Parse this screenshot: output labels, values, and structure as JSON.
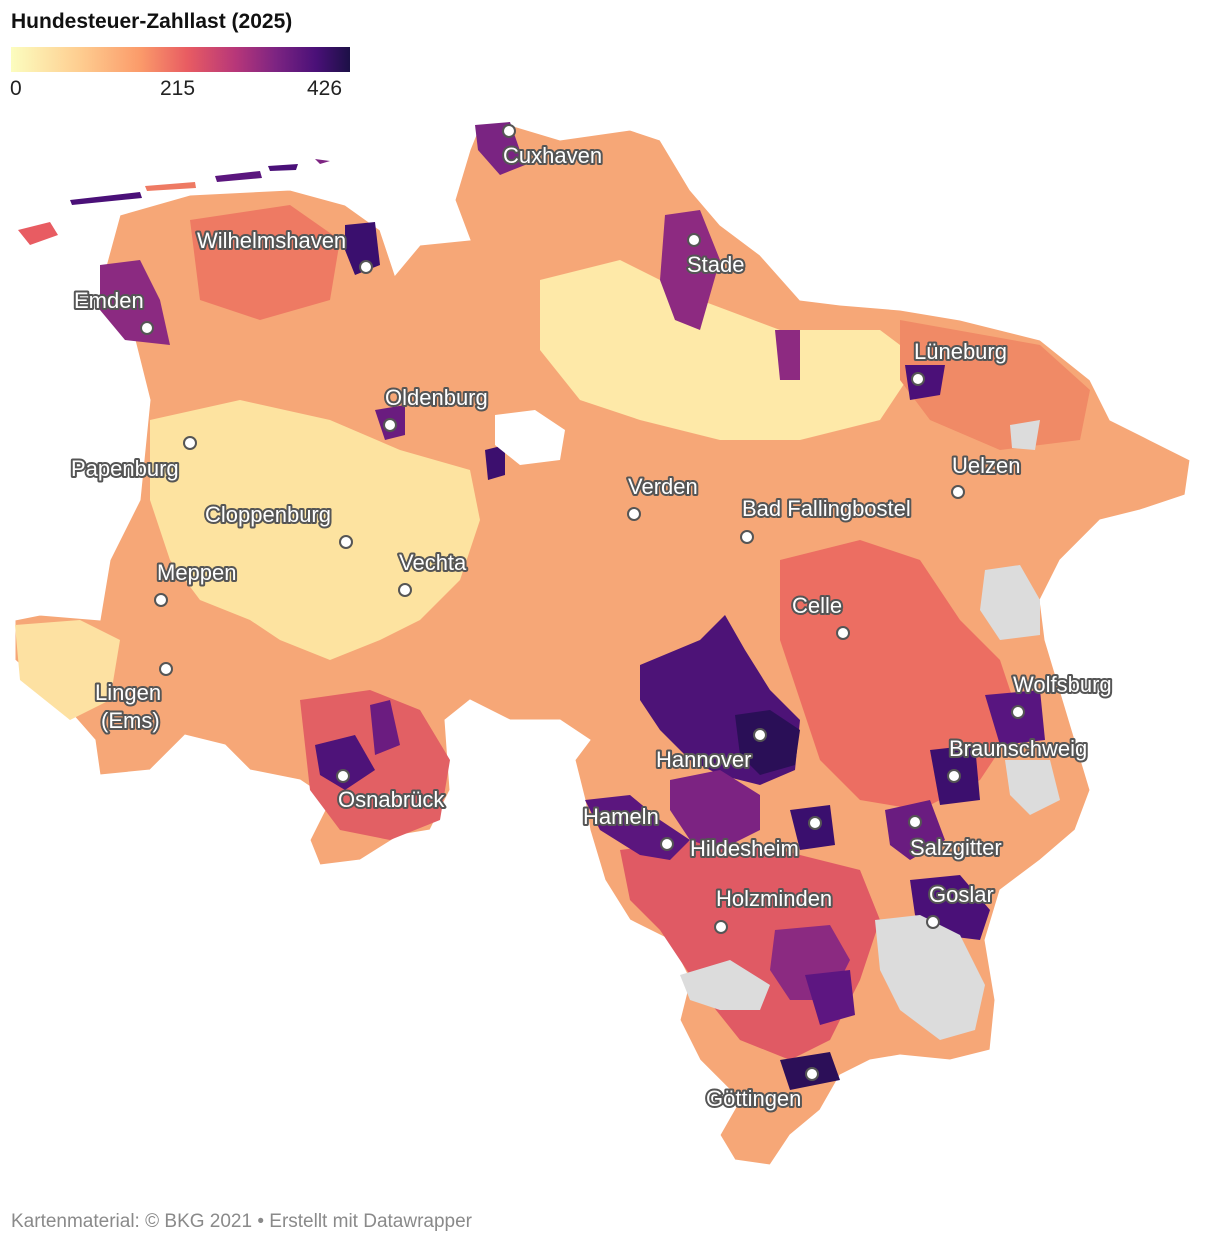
{
  "title": "Hundesteuer-Zahllast (2025)",
  "legend": {
    "min": "0",
    "mid": "215",
    "max": "426",
    "colors": [
      "#fcfdbf",
      "#fece91",
      "#fb9b6a",
      "#e85c62",
      "#b83779",
      "#7d2482",
      "#4a1078",
      "#1c1046"
    ],
    "no_data_color": "#dcdcdc"
  },
  "cities": [
    {
      "name": "Cuxhaven"
    },
    {
      "name": "Wilhelmshaven"
    },
    {
      "name": "Stade"
    },
    {
      "name": "Emden"
    },
    {
      "name": "Lüneburg"
    },
    {
      "name": "Oldenburg"
    },
    {
      "name": "Papenburg"
    },
    {
      "name": "Uelzen"
    },
    {
      "name": "Verden"
    },
    {
      "name": "Bad Fallingbostel"
    },
    {
      "name": "Cloppenburg"
    },
    {
      "name": "Vechta"
    },
    {
      "name": "Meppen"
    },
    {
      "name": "Celle"
    },
    {
      "name": "Wolfsburg"
    },
    {
      "name": "Lingen"
    },
    {
      "name": "(Ems)"
    },
    {
      "name": "Braunschweig"
    },
    {
      "name": "Hannover"
    },
    {
      "name": "Osnabrück"
    },
    {
      "name": "Hameln"
    },
    {
      "name": "Hildesheim"
    },
    {
      "name": "Salzgitter"
    },
    {
      "name": "Goslar"
    },
    {
      "name": "Holzminden"
    },
    {
      "name": "Göttingen"
    }
  ],
  "footer": "Kartenmaterial: © BKG 2021  • Erstellt mit Datawrapper"
}
